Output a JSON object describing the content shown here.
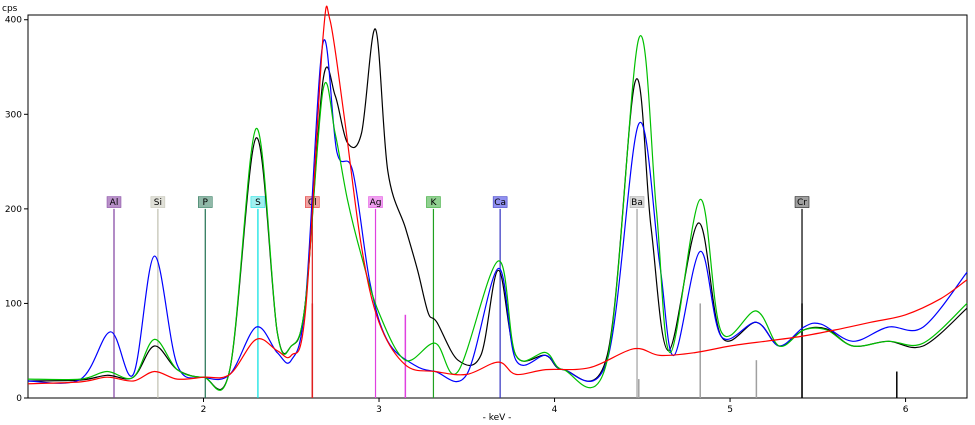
{
  "chart_data": {
    "type": "line",
    "title": "",
    "xlabel": "- keV -",
    "ylabel": "cps",
    "xlim": [
      1.0,
      6.35
    ],
    "ylim": [
      0,
      405
    ],
    "x_ticks": [
      2,
      3,
      4,
      5,
      6
    ],
    "y_ticks": [
      0,
      100,
      200,
      300,
      400
    ],
    "grid": false,
    "legend": "none",
    "series": [
      {
        "color": "#000000",
        "points": [
          [
            1.0,
            18
          ],
          [
            1.3,
            19
          ],
          [
            1.45,
            24
          ],
          [
            1.6,
            22
          ],
          [
            1.72,
            55
          ],
          [
            1.85,
            30
          ],
          [
            2.0,
            22
          ],
          [
            2.15,
            30
          ],
          [
            2.3,
            275
          ],
          [
            2.42,
            70
          ],
          [
            2.5,
            55
          ],
          [
            2.58,
            100
          ],
          [
            2.68,
            335
          ],
          [
            2.75,
            320
          ],
          [
            2.82,
            270
          ],
          [
            2.9,
            280
          ],
          [
            2.98,
            390
          ],
          [
            3.05,
            240
          ],
          [
            3.15,
            180
          ],
          [
            3.22,
            135
          ],
          [
            3.28,
            90
          ],
          [
            3.33,
            80
          ],
          [
            3.45,
            40
          ],
          [
            3.58,
            45
          ],
          [
            3.68,
            135
          ],
          [
            3.78,
            45
          ],
          [
            3.95,
            45
          ],
          [
            4.05,
            30
          ],
          [
            4.3,
            45
          ],
          [
            4.46,
            335
          ],
          [
            4.55,
            180
          ],
          [
            4.65,
            50
          ],
          [
            4.82,
            185
          ],
          [
            4.95,
            65
          ],
          [
            5.15,
            80
          ],
          [
            5.28,
            55
          ],
          [
            5.42,
            72
          ],
          [
            5.55,
            73
          ],
          [
            5.7,
            55
          ],
          [
            5.9,
            60
          ],
          [
            6.1,
            55
          ],
          [
            6.35,
            95
          ]
        ]
      },
      {
        "color": "#0000ff",
        "points": [
          [
            1.0,
            18
          ],
          [
            1.3,
            20
          ],
          [
            1.47,
            70
          ],
          [
            1.6,
            25
          ],
          [
            1.72,
            150
          ],
          [
            1.85,
            35
          ],
          [
            2.0,
            22
          ],
          [
            2.15,
            25
          ],
          [
            2.3,
            75
          ],
          [
            2.42,
            48
          ],
          [
            2.5,
            40
          ],
          [
            2.58,
            100
          ],
          [
            2.68,
            375
          ],
          [
            2.76,
            260
          ],
          [
            2.85,
            240
          ],
          [
            2.95,
            120
          ],
          [
            3.05,
            60
          ],
          [
            3.2,
            35
          ],
          [
            3.32,
            28
          ],
          [
            3.5,
            25
          ],
          [
            3.68,
            137
          ],
          [
            3.78,
            40
          ],
          [
            3.95,
            45
          ],
          [
            4.05,
            30
          ],
          [
            4.3,
            40
          ],
          [
            4.48,
            290
          ],
          [
            4.6,
            140
          ],
          [
            4.68,
            45
          ],
          [
            4.83,
            155
          ],
          [
            4.95,
            65
          ],
          [
            5.15,
            80
          ],
          [
            5.28,
            55
          ],
          [
            5.42,
            75
          ],
          [
            5.52,
            78
          ],
          [
            5.7,
            60
          ],
          [
            5.9,
            75
          ],
          [
            6.1,
            75
          ],
          [
            6.35,
            133
          ]
        ]
      },
      {
        "color": "#00c000",
        "points": [
          [
            1.0,
            20
          ],
          [
            1.3,
            20
          ],
          [
            1.45,
            28
          ],
          [
            1.6,
            22
          ],
          [
            1.72,
            62
          ],
          [
            1.85,
            30
          ],
          [
            2.0,
            22
          ],
          [
            2.15,
            30
          ],
          [
            2.3,
            285
          ],
          [
            2.42,
            70
          ],
          [
            2.5,
            55
          ],
          [
            2.58,
            100
          ],
          [
            2.68,
            325
          ],
          [
            2.75,
            280
          ],
          [
            2.82,
            210
          ],
          [
            2.9,
            150
          ],
          [
            3.0,
            90
          ],
          [
            3.15,
            40
          ],
          [
            3.32,
            58
          ],
          [
            3.45,
            28
          ],
          [
            3.68,
            145
          ],
          [
            3.78,
            45
          ],
          [
            3.95,
            48
          ],
          [
            4.05,
            30
          ],
          [
            4.3,
            40
          ],
          [
            4.48,
            380
          ],
          [
            4.58,
            200
          ],
          [
            4.66,
            48
          ],
          [
            4.83,
            210
          ],
          [
            4.95,
            70
          ],
          [
            5.15,
            92
          ],
          [
            5.28,
            55
          ],
          [
            5.42,
            72
          ],
          [
            5.55,
            72
          ],
          [
            5.7,
            55
          ],
          [
            5.9,
            60
          ],
          [
            6.1,
            58
          ],
          [
            6.35,
            100
          ]
        ]
      },
      {
        "color": "#ff0000",
        "points": [
          [
            1.0,
            15
          ],
          [
            1.3,
            17
          ],
          [
            1.45,
            22
          ],
          [
            1.6,
            18
          ],
          [
            1.72,
            28
          ],
          [
            1.85,
            20
          ],
          [
            2.0,
            22
          ],
          [
            2.15,
            25
          ],
          [
            2.3,
            62
          ],
          [
            2.42,
            50
          ],
          [
            2.5,
            45
          ],
          [
            2.58,
            90
          ],
          [
            2.68,
            380
          ],
          [
            2.72,
            400
          ],
          [
            2.8,
            300
          ],
          [
            2.9,
            160
          ],
          [
            3.0,
            80
          ],
          [
            3.15,
            35
          ],
          [
            3.32,
            28
          ],
          [
            3.5,
            25
          ],
          [
            3.68,
            38
          ],
          [
            3.78,
            25
          ],
          [
            3.95,
            30
          ],
          [
            4.2,
            32
          ],
          [
            4.45,
            52
          ],
          [
            4.6,
            45
          ],
          [
            4.8,
            48
          ],
          [
            5.0,
            55
          ],
          [
            5.2,
            60
          ],
          [
            5.4,
            65
          ],
          [
            5.6,
            72
          ],
          [
            5.8,
            80
          ],
          [
            6.0,
            88
          ],
          [
            6.2,
            105
          ],
          [
            6.35,
            125
          ]
        ]
      }
    ],
    "element_markers": [
      {
        "label": "Al",
        "x": 1.49,
        "color": "#8040a0",
        "bg": "#b890c8"
      },
      {
        "label": "Si",
        "x": 1.74,
        "color": "#c0c0b0",
        "bg": "#e0e0d8"
      },
      {
        "label": "P",
        "x": 2.01,
        "color": "#207050",
        "bg": "#90b8a8"
      },
      {
        "label": "S",
        "x": 2.31,
        "color": "#00e0e0",
        "bg": "#a0f0f0"
      },
      {
        "label": "Cl",
        "x": 2.62,
        "color": "#e02020",
        "bg": "#f0a0a0"
      },
      {
        "label": "Ag",
        "x": 2.98,
        "color": "#e040e0",
        "bg": "#f0a0f0"
      },
      {
        "label": "K",
        "x": 3.31,
        "color": "#20a020",
        "bg": "#90d090"
      },
      {
        "label": "Ca",
        "x": 3.69,
        "color": "#3030c0",
        "bg": "#9090f0"
      },
      {
        "label": "Ba",
        "x": 4.47,
        "color": "#a0a0a0",
        "bg": "#d8d8d8"
      },
      {
        "label": "Cr",
        "x": 5.41,
        "color": "#000000",
        "bg": "#a0a0a0"
      }
    ],
    "stick_lines": [
      {
        "x": 2.62,
        "y": 100,
        "color": "#e02020"
      },
      {
        "x": 3.15,
        "y": 88,
        "color": "#e040e0"
      },
      {
        "x": 4.48,
        "y": 20,
        "color": "#a0a0a0"
      },
      {
        "x": 4.83,
        "y": 100,
        "color": "#a0a0a0"
      },
      {
        "x": 5.15,
        "y": 40,
        "color": "#a0a0a0"
      },
      {
        "x": 5.41,
        "y": 100,
        "color": "#000000"
      },
      {
        "x": 5.95,
        "y": 28,
        "color": "#000000"
      }
    ]
  }
}
